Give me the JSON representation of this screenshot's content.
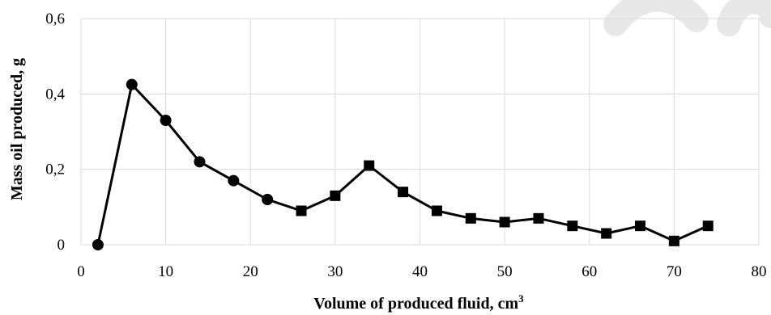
{
  "chart_data": {
    "type": "line",
    "title": "",
    "xlabel": "Volume of produced fluid, cm",
    "xlabel_sup": "3",
    "ylabel": "Mass oil produced, g",
    "xlim": [
      0,
      80
    ],
    "ylim": [
      0,
      0.6
    ],
    "xticks": [
      0,
      10,
      20,
      30,
      40,
      50,
      60,
      70,
      80
    ],
    "xtick_labels": [
      "0",
      "10",
      "20",
      "30",
      "40",
      "50",
      "60",
      "70",
      "80"
    ],
    "yticks": [
      0,
      0.2,
      0.4,
      0.6
    ],
    "ytick_labels": [
      "0",
      "0,2",
      "0,4",
      "0,6"
    ],
    "grid": true,
    "legend": "none",
    "series": [
      {
        "points": [
          {
            "x": 2,
            "y": 0.0,
            "marker": "circle"
          },
          {
            "x": 6,
            "y": 0.425,
            "marker": "circle"
          },
          {
            "x": 10,
            "y": 0.33,
            "marker": "circle"
          },
          {
            "x": 14,
            "y": 0.22,
            "marker": "circle"
          },
          {
            "x": 18,
            "y": 0.17,
            "marker": "circle"
          },
          {
            "x": 22,
            "y": 0.12,
            "marker": "circle"
          },
          {
            "x": 26,
            "y": 0.09,
            "marker": "square"
          },
          {
            "x": 30,
            "y": 0.13,
            "marker": "square"
          },
          {
            "x": 34,
            "y": 0.21,
            "marker": "square"
          },
          {
            "x": 38,
            "y": 0.14,
            "marker": "square"
          },
          {
            "x": 42,
            "y": 0.09,
            "marker": "square"
          },
          {
            "x": 46,
            "y": 0.07,
            "marker": "square"
          },
          {
            "x": 50,
            "y": 0.06,
            "marker": "square"
          },
          {
            "x": 54,
            "y": 0.07,
            "marker": "square"
          },
          {
            "x": 58,
            "y": 0.05,
            "marker": "square"
          },
          {
            "x": 62,
            "y": 0.03,
            "marker": "square"
          },
          {
            "x": 66,
            "y": 0.05,
            "marker": "square"
          },
          {
            "x": 70,
            "y": 0.01,
            "marker": "square"
          },
          {
            "x": 74,
            "y": 0.05,
            "marker": "square"
          }
        ],
        "color": "#000000"
      }
    ]
  }
}
